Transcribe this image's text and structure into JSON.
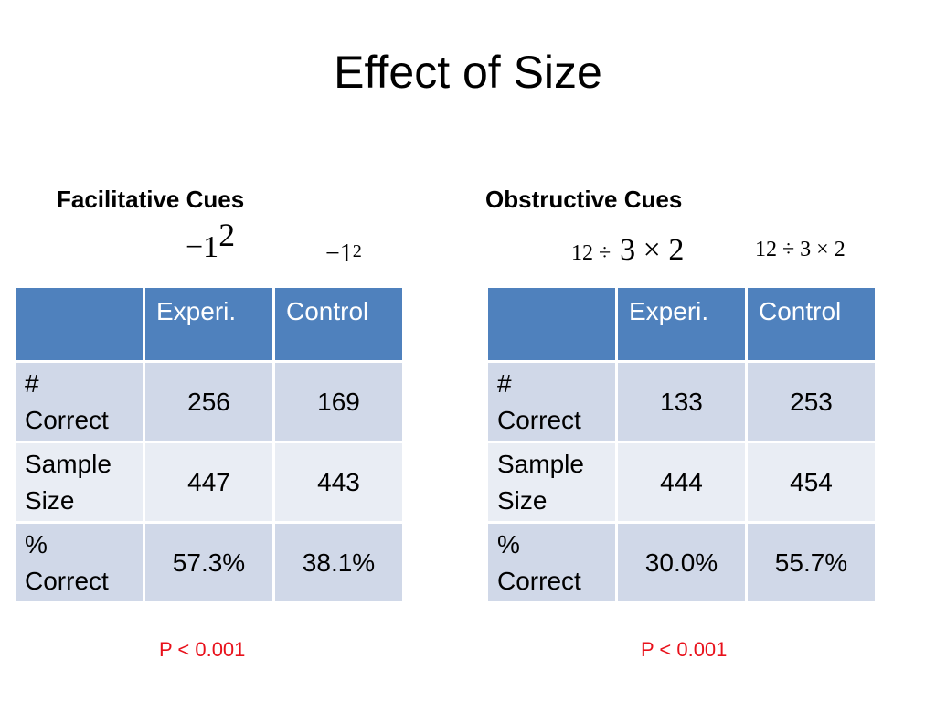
{
  "title": "Effect of Size",
  "left": {
    "heading": "Facilitative Cues",
    "expr_big_base": "−1",
    "expr_big_exp": "2",
    "expr_small_base": "−1",
    "expr_small_exp": "2",
    "table": {
      "headers": [
        "",
        "Experi.",
        "Control"
      ],
      "rows": [
        {
          "label_line1": "#",
          "label_line2": "Correct",
          "experi": "256",
          "control": "169"
        },
        {
          "label_line1": "Sample",
          "label_line2": "Size",
          "experi": "447",
          "control": "443"
        },
        {
          "label_line1": "%",
          "label_line2": "Correct",
          "experi": "57.3%",
          "control": "38.1%"
        }
      ]
    },
    "p_value": "P < 0.001"
  },
  "right": {
    "heading": "Obstructive Cues",
    "expr_mixed_small": "12 ÷",
    "expr_mixed_big": "3 × 2",
    "expr_uniform": "12 ÷ 3 × 2",
    "table": {
      "headers": [
        "",
        "Experi.",
        "Control"
      ],
      "rows": [
        {
          "label_line1": "#",
          "label_line2": "Correct",
          "experi": "133",
          "control": "253"
        },
        {
          "label_line1": "Sample",
          "label_line2": "Size",
          "experi": "444",
          "control": "454"
        },
        {
          "label_line1": "%",
          "label_line2": "Correct",
          "experi": "30.0%",
          "control": "55.7%"
        }
      ]
    },
    "p_value": "P < 0.001"
  },
  "colors": {
    "header_blue": "#4f81bd",
    "row_dark": "#d0d8e8",
    "row_light": "#e9edf4",
    "p_value_red": "#e8111b"
  }
}
